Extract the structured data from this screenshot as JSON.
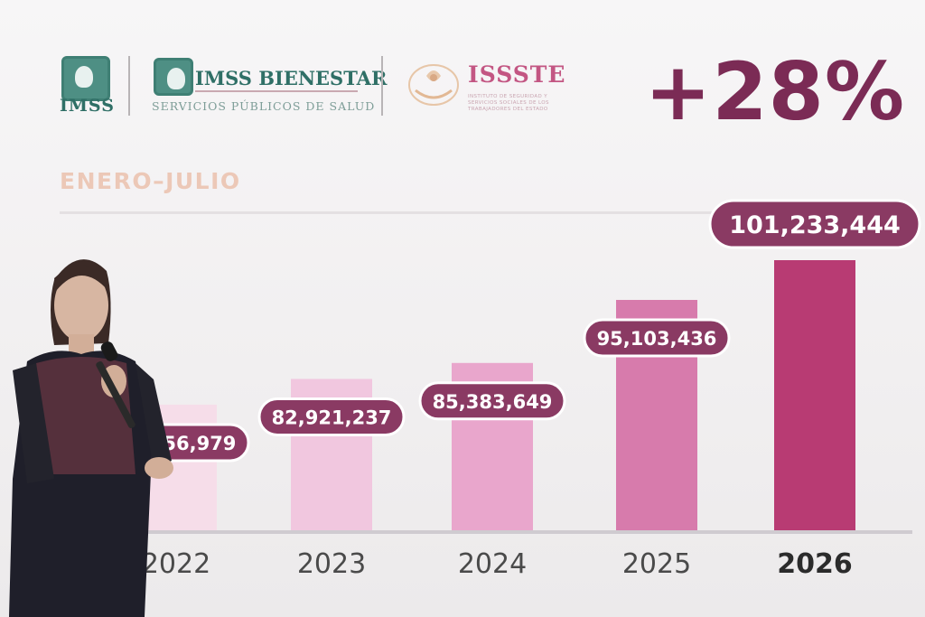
{
  "logos": {
    "imss": {
      "label": "IMSS"
    },
    "imss_bienestar": {
      "title": "IMSS BIENESTAR",
      "subtitle": "SERVICIOS PÚBLICOS DE SALUD"
    },
    "issste": {
      "title": "ISSSTE",
      "subtitle": "INSTITUTO DE SEGURIDAD Y SERVICIOS SOCIALES DE LOS TRABAJADORES DEL ESTADO"
    }
  },
  "headline": "+28%",
  "colors": {
    "headline": "#7b2b55",
    "bars": [
      "#f6dde9",
      "#f1c7df",
      "#e9a6cc",
      "#d77bac",
      "#b83b73"
    ],
    "label_bg": "#8a3a63",
    "label_border": "#ffffff",
    "period": "#ecc8b7"
  },
  "chart_data": {
    "type": "bar",
    "title": "ENERO–JULIO",
    "categories": [
      "2022",
      "2023",
      "2024",
      "2025",
      "2026"
    ],
    "values": [
      78956979,
      82921237,
      85383649,
      95103436,
      101233444
    ],
    "value_labels": [
      "78,956,979",
      "82,921,237",
      "85,383,649",
      "95,103,436",
      "101,233,444"
    ],
    "highlight_category": "2026",
    "ylim": [
      0,
      101233444
    ],
    "xlabel": "",
    "ylabel": "",
    "grid": false,
    "legend": "none"
  }
}
